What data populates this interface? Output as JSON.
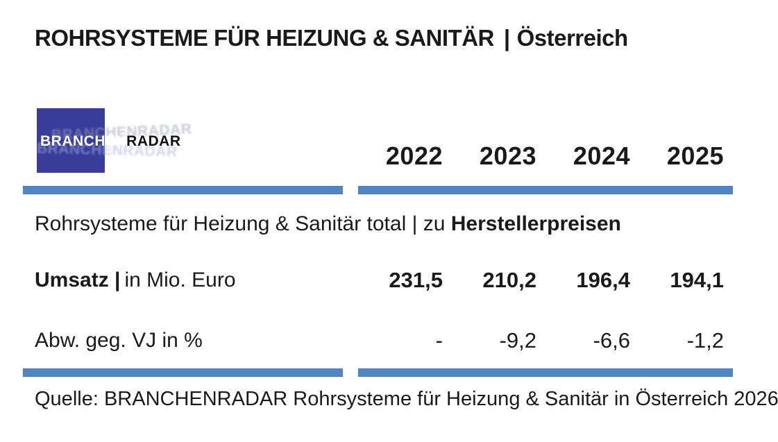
{
  "header": {
    "title_caps": "ROHRSYSTEME FÜR HEIZUNG & SANITÄR",
    "separator": "|",
    "region": "Österreich"
  },
  "logo": {
    "text_blue_part": "BRANCHEN",
    "text_black_part": "RADAR",
    "ghost_text": "BRANCHENRADAR"
  },
  "table": {
    "years": [
      "2022",
      "2023",
      "2024",
      "2025"
    ],
    "section": {
      "label_regular": "Rohrsysteme für Heizung & Sanitär  total | zu ",
      "label_bold": "Herstellerpreisen"
    },
    "rows": [
      {
        "label_bold": "Umsatz |",
        "label_regular": "in Mio. Euro",
        "values": [
          "231,5",
          "210,2",
          "196,4",
          "194,1"
        ]
      },
      {
        "label_bold": "",
        "label_regular": "Abw. geg. VJ in %",
        "values": [
          "-",
          "-9,2",
          "-6,6",
          "-1,2"
        ]
      }
    ]
  },
  "footer": {
    "source": "Quelle: BRANCHENRADAR Rohrsysteme für Heizung & Sanitär  in Österreich 2026"
  },
  "colors": {
    "divider_blue": "#4E86C8",
    "logo_blue": "#383D9C",
    "text": "#1A1A1A"
  },
  "chart_data": {
    "type": "table",
    "title": "Rohrsysteme für Heizung & Sanitär total | zu Herstellerpreisen",
    "columns": [
      "2022",
      "2023",
      "2024",
      "2025"
    ],
    "rows": [
      {
        "label": "Umsatz | in Mio. Euro",
        "values": [
          231.5,
          210.2,
          196.4,
          194.1
        ]
      },
      {
        "label": "Abw. geg. VJ in %",
        "values": [
          null,
          -9.2,
          -6.6,
          -1.2
        ]
      }
    ]
  }
}
